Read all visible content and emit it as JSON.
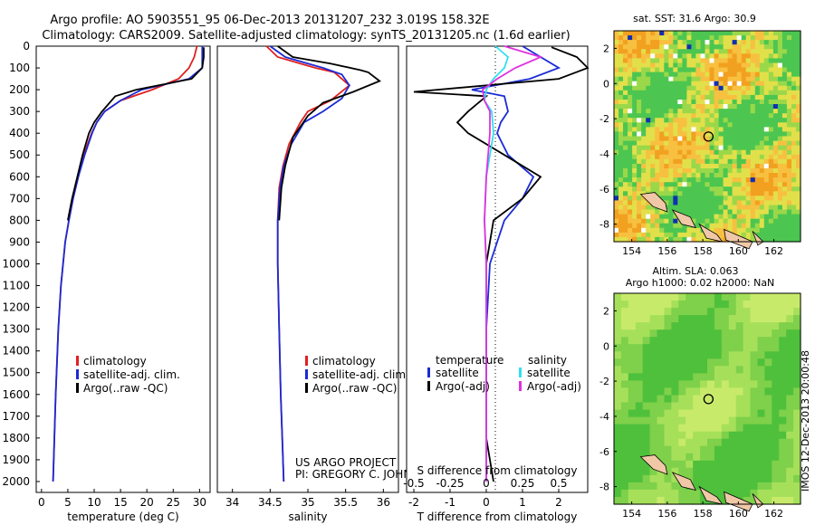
{
  "header": {
    "line1": "Argo profile: AO 5903551_95 06-Dec-2013 20131207_232 3.019S 158.32E",
    "line2": "Climatology: CARS2009. Satellite-adjusted climatology: synTS_20131205.nc (1.6d earlier)"
  },
  "colors": {
    "climatology": "#e02020",
    "satellite": "#1a2bd6",
    "argo": "#000000",
    "sal_satellite": "#30e0f0",
    "sal_argo": "#e030e0"
  },
  "chart_data": [
    {
      "type": "line",
      "id": "temperature",
      "title": "",
      "xlabel": "temperature (deg C)",
      "ylabel": "",
      "xlim": [
        -1,
        32
      ],
      "ylim": [
        2050,
        0
      ],
      "xticks": [
        "0",
        "5",
        "10",
        "15",
        "20",
        "25",
        "30"
      ],
      "yticks": [
        "0",
        "100",
        "200",
        "300",
        "400",
        "500",
        "600",
        "700",
        "800",
        "900",
        "1000",
        "1100",
        "1200",
        "1300",
        "1400",
        "1500",
        "1600",
        "1700",
        "1800",
        "1900",
        "2000"
      ],
      "legend": [
        "climatology",
        "satellite-adj. clim.",
        "Argo(..raw -QC)"
      ],
      "series": [
        {
          "name": "climatology",
          "x": [
            29.5,
            29,
            28,
            26,
            21,
            15,
            12,
            10.5,
            9.5,
            8,
            7,
            6,
            5.2,
            4.5,
            3.7,
            3.2,
            2.7,
            2.2
          ],
          "y": [
            0,
            50,
            100,
            150,
            200,
            250,
            300,
            350,
            400,
            500,
            600,
            700,
            800,
            900,
            1100,
            1300,
            1600,
            2000
          ]
        },
        {
          "name": "satellite-adj. clim.",
          "x": [
            30.5,
            30.5,
            30.5,
            28,
            19,
            15,
            12,
            10.5,
            9.6,
            8.2,
            7,
            6,
            5.2,
            4.5,
            3.7,
            3.2,
            2.7,
            2.2
          ],
          "y": [
            0,
            50,
            100,
            150,
            200,
            250,
            300,
            350,
            400,
            500,
            600,
            700,
            800,
            900,
            1100,
            1300,
            1600,
            2000
          ]
        },
        {
          "name": "Argo(..raw -QC)",
          "x": [
            30.8,
            30.8,
            30.5,
            28.5,
            18,
            14,
            11.5,
            10,
            9,
            7.8,
            6.8,
            5.8,
            5
          ],
          "y": [
            5,
            50,
            100,
            150,
            200,
            230,
            300,
            350,
            400,
            500,
            600,
            700,
            800
          ]
        }
      ]
    },
    {
      "type": "line",
      "id": "salinity",
      "title": "",
      "xlabel": "salinity",
      "ylabel": "",
      "xlim": [
        33.8,
        36.2
      ],
      "ylim": [
        2050,
        0
      ],
      "xticks": [
        "34",
        "34.5",
        "35",
        "35.5",
        "36"
      ],
      "legend": [
        "climatology",
        "satellite-adj. clim.",
        "Argo(..raw -QC)"
      ],
      "annotations": [
        "US ARGO PROJECT",
        "PI: GREGORY C. JOHNSON"
      ],
      "series": [
        {
          "name": "climatology",
          "x": [
            34.45,
            34.6,
            34.9,
            35.1,
            35.35,
            35.55,
            35.3,
            35.0,
            34.9,
            34.75,
            34.67,
            34.62,
            34.6,
            34.6,
            34.62,
            34.64,
            34.66,
            34.68
          ],
          "y": [
            0,
            50,
            80,
            100,
            120,
            180,
            250,
            300,
            350,
            450,
            550,
            650,
            800,
            1000,
            1300,
            1600,
            1800,
            2000
          ]
        },
        {
          "name": "satellite-adj. clim.",
          "x": [
            34.5,
            34.7,
            35.0,
            35.2,
            35.45,
            35.55,
            35.45,
            35.2,
            34.95,
            34.78,
            34.68,
            34.63,
            34.6,
            34.6,
            34.62,
            34.64,
            34.66,
            34.68
          ],
          "y": [
            0,
            50,
            80,
            100,
            130,
            180,
            240,
            300,
            350,
            450,
            550,
            650,
            800,
            1000,
            1300,
            1600,
            1800,
            2000
          ]
        },
        {
          "name": "Argo(..raw -QC)",
          "x": [
            34.6,
            34.8,
            35.3,
            35.7,
            35.8,
            35.95,
            35.6,
            35.2,
            35.0,
            34.8,
            34.7,
            34.65,
            34.62
          ],
          "y": [
            0,
            50,
            80,
            110,
            120,
            160,
            210,
            260,
            320,
            420,
            550,
            650,
            800
          ]
        }
      ]
    },
    {
      "type": "line",
      "id": "differences",
      "title": "",
      "xlabel": "T difference from climatology",
      "xlabel_top": "S difference from climatology",
      "ylabel": "",
      "xlim": [
        -2.2,
        2.8
      ],
      "ylim": [
        2050,
        0
      ],
      "xticks": [
        "-2",
        "-1",
        "0",
        "1",
        "2"
      ],
      "xticks_sal": [
        "-0.5",
        "-0.25",
        "0",
        "0.25",
        "0.5"
      ],
      "legend_titles": [
        "temperature",
        "salinity"
      ],
      "legend": [
        "satellite",
        "Argo(-adj)",
        "satellite",
        "Argo(-adj)"
      ],
      "series": [
        {
          "name": "temperature satellite",
          "x": [
            1.0,
            1.5,
            2.0,
            1.2,
            -0.4,
            0.5,
            0.6,
            0.4,
            0.3,
            0.6,
            1.3,
            1.0,
            0.5,
            0.1,
            0.0,
            0.0,
            0.0,
            0.0
          ],
          "y": [
            0,
            50,
            100,
            150,
            200,
            230,
            300,
            350,
            400,
            500,
            600,
            700,
            800,
            1000,
            1300,
            1600,
            1800,
            2000
          ]
        },
        {
          "name": "temperature Argo(-adj)",
          "x": [
            1.8,
            2.5,
            2.8,
            2.0,
            -2.0,
            0.0,
            -0.5,
            -0.8,
            -0.5,
            0.5,
            1.5,
            1.0,
            0.2,
            0.0,
            0.0,
            0.0,
            0.0,
            0.2
          ],
          "y": [
            5,
            50,
            100,
            150,
            210,
            230,
            300,
            350,
            400,
            500,
            600,
            700,
            800,
            1000,
            1300,
            1600,
            1800,
            2000
          ]
        },
        {
          "name": "salinity satellite",
          "x": [
            0.25,
            0.6,
            0.5,
            0.2,
            0.0,
            -0.05,
            0.15,
            0.2,
            0.0,
            -0.05,
            0.0,
            0.0,
            0.0
          ],
          "y": [
            0,
            50,
            100,
            150,
            200,
            250,
            300,
            400,
            600,
            800,
            1000,
            1500,
            2000
          ]
        },
        {
          "name": "salinity Argo(-adj)",
          "x": [
            0.5,
            1.5,
            0.8,
            0.3,
            -0.1,
            -0.05,
            0.1,
            0.1,
            0.0,
            -0.05,
            0.0,
            0.0,
            0.0
          ],
          "y": [
            0,
            50,
            100,
            150,
            200,
            250,
            300,
            400,
            600,
            800,
            1000,
            1500,
            2000
          ]
        }
      ]
    },
    {
      "type": "heatmap",
      "id": "sst_map",
      "title": "sat. SST: 31.6  Argo: 30.9",
      "xticks": [
        "154",
        "156",
        "158",
        "160",
        "162"
      ],
      "yticks": [
        "2",
        "0",
        "-2",
        "-4",
        "-6",
        "-8"
      ],
      "xlim": [
        153,
        163.5
      ],
      "ylim": [
        -9,
        3
      ],
      "marker": {
        "lon": 158.32,
        "lat": -3.019
      }
    },
    {
      "type": "heatmap",
      "id": "sla_map",
      "title": "Altim. SLA: 0.063",
      "subtitle": "Argo h1000: 0.02 h2000: NaN",
      "xticks": [
        "154",
        "156",
        "158",
        "160",
        "162"
      ],
      "yticks": [
        "2",
        "0",
        "-2",
        "-4",
        "-6",
        "-8"
      ],
      "xlim": [
        153,
        163.5
      ],
      "ylim": [
        -9,
        3
      ],
      "marker": {
        "lon": 158.32,
        "lat": -3.019
      }
    }
  ],
  "side_label": "IMOS 12-Dec-2013 20:00:48"
}
